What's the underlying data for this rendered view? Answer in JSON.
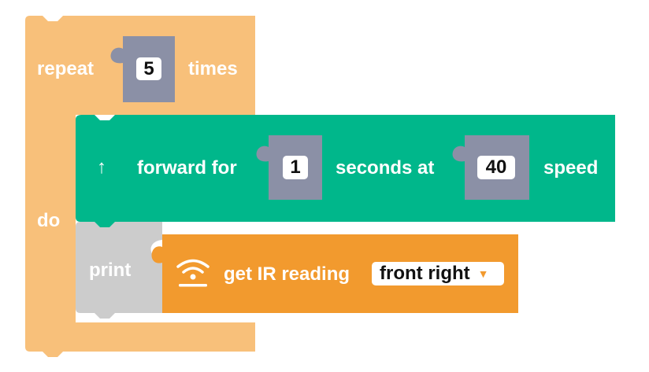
{
  "repeat_block": {
    "prefix": "repeat",
    "count": "5",
    "suffix": "times",
    "do_label": "do",
    "color": "#f8c07a"
  },
  "forward_block": {
    "arrow": "↑",
    "label_a": "forward for",
    "seconds": "1",
    "label_b": "seconds at",
    "speed_value": "40",
    "label_c": "speed",
    "color": "#00b78b"
  },
  "print_block": {
    "label": "print",
    "color": "#cccccc"
  },
  "ir_block": {
    "icon": "ir-sensor-icon",
    "label": "get IR reading",
    "sensor_selected": "front right",
    "dropdown_arrow": "▼",
    "color": "#f29a2e"
  },
  "socket_color": "#8b90a6"
}
